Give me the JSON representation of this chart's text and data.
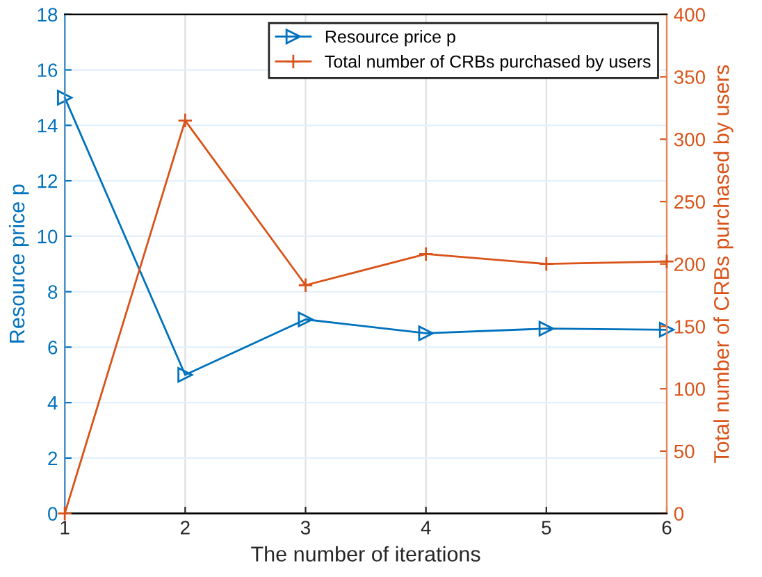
{
  "chart_data": {
    "type": "line",
    "xlabel": "The number of iterations",
    "ylabel": "Resource price p",
    "y2label": "Total number of CRBs purchased by users",
    "x": [
      1,
      2,
      3,
      4,
      5,
      6
    ],
    "series": [
      {
        "name": "Resource price p",
        "color": "#0072bd",
        "marker": "triangle",
        "values": [
          15,
          5,
          7,
          6.5,
          6.67,
          6.63
        ]
      },
      {
        "name": "Total number of CRBs purchased by users",
        "color": "#d95319",
        "marker": "cross",
        "axis": "y2",
        "values": [
          0,
          315,
          183,
          208,
          200,
          202
        ]
      }
    ],
    "xlim": [
      1,
      6
    ],
    "xticks": [
      1,
      2,
      3,
      4,
      5,
      6
    ],
    "ylim": [
      0,
      18
    ],
    "yticks": [
      0,
      2,
      4,
      6,
      8,
      10,
      12,
      14,
      16,
      18
    ],
    "y2lim": [
      0,
      400
    ],
    "y2ticks": [
      0,
      50,
      100,
      150,
      200,
      250,
      300,
      350,
      400
    ],
    "grid": true,
    "legend": "top right",
    "line_style": "solid"
  }
}
